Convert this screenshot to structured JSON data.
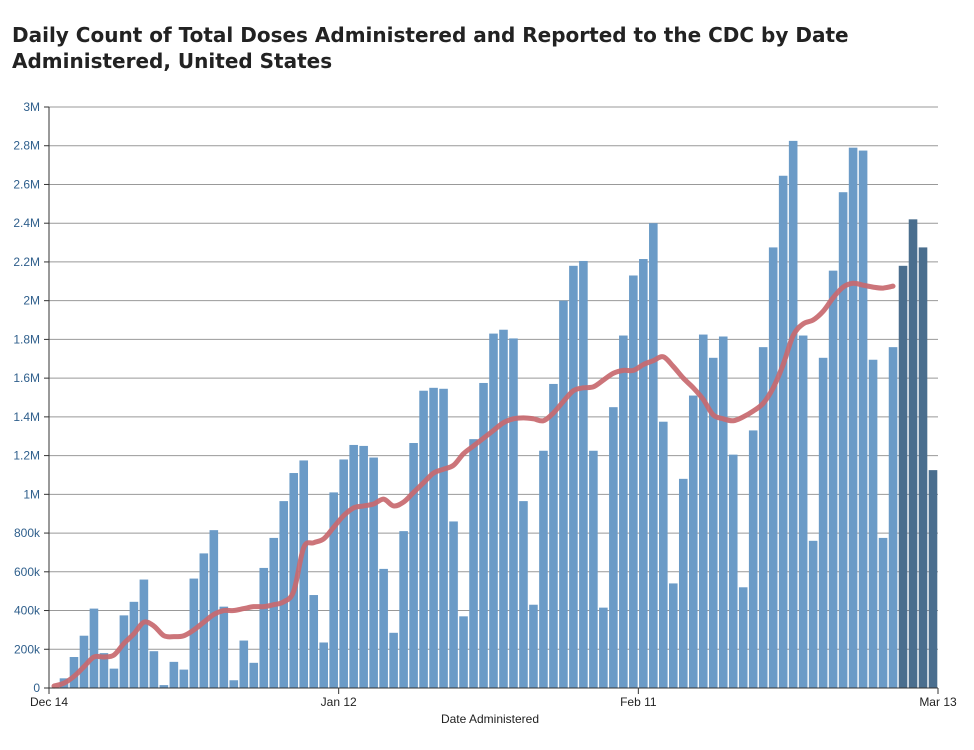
{
  "page": {
    "title": "Daily Count of Total Doses Administered and Reported to the CDC by Date Administered, United States"
  },
  "chart_data": {
    "type": "bar",
    "title": "Daily Count of Total Doses Administered and Reported to the CDC by Date Administered, United States",
    "xlabel": "Date Administered",
    "ylabel": "",
    "ylim": [
      0,
      3000000
    ],
    "yticks": [
      {
        "value": 0,
        "label": "0"
      },
      {
        "value": 200000,
        "label": "200k"
      },
      {
        "value": 400000,
        "label": "400k"
      },
      {
        "value": 600000,
        "label": "600k"
      },
      {
        "value": 800000,
        "label": "800k"
      },
      {
        "value": 1000000,
        "label": "1M"
      },
      {
        "value": 1200000,
        "label": "1.2M"
      },
      {
        "value": 1400000,
        "label": "1.4M"
      },
      {
        "value": 1600000,
        "label": "1.6M"
      },
      {
        "value": 1800000,
        "label": "1.8M"
      },
      {
        "value": 2000000,
        "label": "2M"
      },
      {
        "value": 2200000,
        "label": "2.2M"
      },
      {
        "value": 2400000,
        "label": "2.4M"
      },
      {
        "value": 2600000,
        "label": "2.6M"
      },
      {
        "value": 2800000,
        "label": "2.8M"
      },
      {
        "value": 3000000,
        "label": "3M"
      }
    ],
    "xlim": [
      "2020-12-14",
      "2021-03-13"
    ],
    "xticks": [
      {
        "date": "2020-12-14",
        "label": "Dec 14"
      },
      {
        "date": "2021-01-12",
        "label": "Jan 12"
      },
      {
        "date": "2021-02-11",
        "label": "Feb 11"
      },
      {
        "date": "2021-03-13",
        "label": "Mar 13"
      }
    ],
    "grid": true,
    "colors": {
      "bar": "#6b9bc7",
      "bar_recent": "#4a6e8e",
      "average_line": "#c8696f",
      "grid": "#999999",
      "axis": "#333333"
    },
    "bars": {
      "start_date": "2020-12-14",
      "recent_from": "2021-03-09",
      "values": [
        0,
        50000,
        160000,
        270000,
        410000,
        180000,
        100000,
        375000,
        445000,
        560000,
        190000,
        15000,
        135000,
        95000,
        565000,
        695000,
        815000,
        420000,
        40000,
        245000,
        130000,
        620000,
        775000,
        965000,
        1110000,
        1175000,
        480000,
        235000,
        1010000,
        1180000,
        1255000,
        1250000,
        1190000,
        615000,
        285000,
        810000,
        1265000,
        1535000,
        1550000,
        1545000,
        860000,
        370000,
        1285000,
        1575000,
        1830000,
        1850000,
        1805000,
        965000,
        430000,
        1225000,
        1570000,
        2000000,
        2180000,
        2205000,
        1225000,
        415000,
        1450000,
        1820000,
        2130000,
        2215000,
        2400000,
        1375000,
        540000,
        1080000,
        1510000,
        1825000,
        1705000,
        1815000,
        1205000,
        520000,
        1330000,
        1760000,
        2275000,
        2645000,
        2825000,
        1820000,
        760000,
        1705000,
        2155000,
        2560000,
        2790000,
        2775000,
        1695000,
        775000,
        1760000,
        2180000,
        2420000,
        2275000,
        1125000
      ]
    },
    "series": [
      {
        "type": "line",
        "start_date": "2020-12-14",
        "values": [
          10000,
          25000,
          60000,
          110000,
          160000,
          160000,
          170000,
          230000,
          280000,
          340000,
          320000,
          270000,
          265000,
          270000,
          300000,
          340000,
          380000,
          400000,
          400000,
          410000,
          420000,
          420000,
          430000,
          445000,
          500000,
          725000,
          750000,
          770000,
          830000,
          890000,
          930000,
          940000,
          950000,
          975000,
          940000,
          960000,
          1010000,
          1060000,
          1110000,
          1130000,
          1150000,
          1210000,
          1250000,
          1290000,
          1330000,
          1370000,
          1390000,
          1395000,
          1390000,
          1380000,
          1420000,
          1480000,
          1535000,
          1550000,
          1555000,
          1590000,
          1625000,
          1640000,
          1640000,
          1670000,
          1690000,
          1710000,
          1660000,
          1600000,
          1550000,
          1490000,
          1410000,
          1390000,
          1380000,
          1400000,
          1430000,
          1470000,
          1550000,
          1670000,
          1820000,
          1880000,
          1900000,
          1945000,
          2015000,
          2070000,
          2090000,
          2080000,
          2070000,
          2065000,
          2075000
        ]
      }
    ]
  }
}
